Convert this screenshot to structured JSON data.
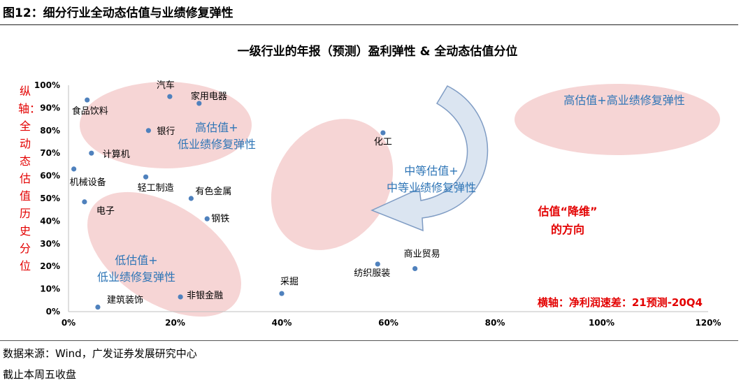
{
  "figure": {
    "number_title": "图12：细分行业全动态估值与业绩修复弹性",
    "source": "数据来源：Wind，广发证券发展研究中心",
    "note": "截止本周五收盘"
  },
  "chart_data": {
    "type": "scatter",
    "title": "一级行业的年报（预测）盈利弹性 & 全动态估值分位",
    "xlabel": "横轴：净利润速差：21预测-20Q4",
    "ylabel": "纵轴：全动态估值历史分位",
    "xlim": [
      0,
      1.2
    ],
    "ylim": [
      0,
      1.0
    ],
    "x_ticks": [
      "0%",
      "20%",
      "40%",
      "60%",
      "80%",
      "100%",
      "120%"
    ],
    "y_ticks": [
      "0%",
      "10%",
      "20%",
      "30%",
      "40%",
      "50%",
      "60%",
      "70%",
      "80%",
      "90%",
      "100%"
    ],
    "grid": false,
    "point_color": "#4f81bd",
    "points": [
      {
        "name": "食品饮料",
        "x": 0.035,
        "y": 0.935
      },
      {
        "name": "汽车",
        "x": 0.19,
        "y": 0.95
      },
      {
        "name": "家用电器",
        "x": 0.245,
        "y": 0.92
      },
      {
        "name": "银行",
        "x": 0.15,
        "y": 0.8
      },
      {
        "name": "计算机",
        "x": 0.043,
        "y": 0.7
      },
      {
        "name": "机械设备",
        "x": 0.01,
        "y": 0.63
      },
      {
        "name": "轻工制造",
        "x": 0.145,
        "y": 0.595
      },
      {
        "name": "有色金属",
        "x": 0.23,
        "y": 0.5
      },
      {
        "name": "电子",
        "x": 0.03,
        "y": 0.485
      },
      {
        "name": "钢铁",
        "x": 0.26,
        "y": 0.41
      },
      {
        "name": "化工",
        "x": 0.59,
        "y": 0.79
      },
      {
        "name": "商业贸易",
        "x": 0.65,
        "y": 0.19
      },
      {
        "name": "纺织服装",
        "x": 0.58,
        "y": 0.21
      },
      {
        "name": "采掘",
        "x": 0.4,
        "y": 0.08
      },
      {
        "name": "非银金融",
        "x": 0.21,
        "y": 0.065
      },
      {
        "name": "建筑装饰",
        "x": 0.055,
        "y": 0.02
      }
    ],
    "annotations": {
      "zone_high_val": "高估值+\n低业绩修复弹性",
      "zone_mid": "中等估值+\n中等业绩修复弹性",
      "zone_low_val": "低估值+\n低业绩修复弹性",
      "zone_target": "高估值+高业绩修复弹性",
      "direction": "估值“降维”\n的方向"
    },
    "colors": {
      "ellipse_fill": "#f6d5d5",
      "annotation_blue": "#2e75b6",
      "annotation_red": "#e30000",
      "arrow_fill": "#dbe5f1",
      "arrow_stroke": "#7f9cc4"
    }
  }
}
